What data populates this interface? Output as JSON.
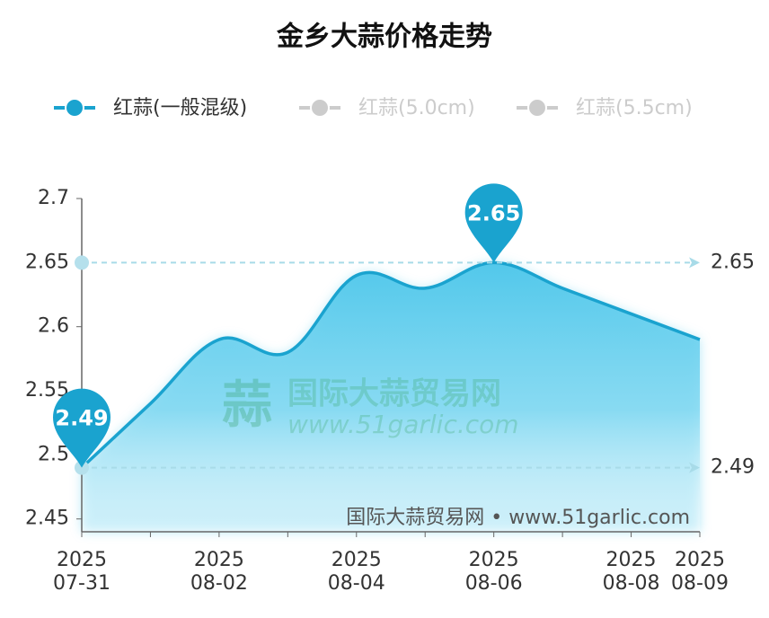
{
  "chart_data": {
    "type": "line",
    "title": "金乡大蒜价格走势",
    "categories": [
      "2025\n07-31",
      null,
      "2025\n08-02",
      null,
      "2025\n08-04",
      null,
      "2025\n08-06",
      null,
      "2025\n08-08",
      "2025\n08-09"
    ],
    "series": [
      {
        "name": "红蒜(一般混级)",
        "color": "#1aa3cf",
        "selected": true,
        "values": [
          2.49,
          2.54,
          2.59,
          2.58,
          2.64,
          2.63,
          2.65,
          2.63,
          2.61,
          2.59
        ]
      },
      {
        "name": "红蒜(5.0cm)",
        "color": "#cccccc",
        "selected": false
      },
      {
        "name": "红蒜(5.5cm)",
        "color": "#cccccc",
        "selected": false
      }
    ],
    "ylim": [
      2.44,
      2.7
    ],
    "yticks": [
      2.45,
      2.5,
      2.55,
      2.6,
      2.65,
      2.7
    ],
    "grid": false,
    "mark_points": [
      {
        "value": 2.65,
        "index": 6
      },
      {
        "value": 2.49,
        "index": 0
      }
    ],
    "mark_lines": [
      2.65,
      2.49
    ],
    "watermark": {
      "name": "国际大蒜贸易网",
      "url": "www.51garlic.com",
      "footer": "国际大蒜贸易网 • www.51garlic.com"
    }
  }
}
